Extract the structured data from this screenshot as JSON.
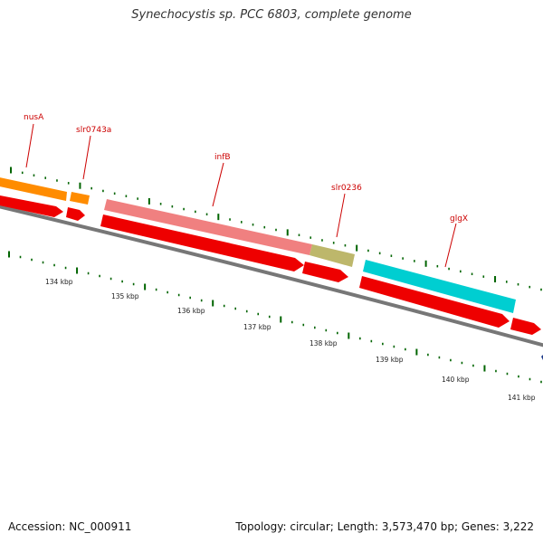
{
  "title": "Synechocystis sp. PCC 6803, complete genome",
  "accession": "Accession: NC_000911",
  "summary": "Topology: circular; Length: 3,573,470 bp; Genes: 3,222",
  "genes": [
    {
      "name": "nusA",
      "color": "#ff8c00"
    },
    {
      "name": "slr0743a",
      "color": "#ff8c00"
    },
    {
      "name": "infB",
      "color": "#f08080"
    },
    {
      "name": "slr0236",
      "color": "#bdb76b"
    },
    {
      "name": "glgX",
      "color": "#00ced1"
    }
  ],
  "cds_color": "#ee0000",
  "backbone_color": "#777777",
  "tick_color": "#006400",
  "kbp_labels": [
    "134 kbp",
    "135 kbp",
    "136 kbp",
    "137 kbp",
    "138 kbp",
    "139 kbp",
    "140 kbp",
    "141 kbp"
  ]
}
